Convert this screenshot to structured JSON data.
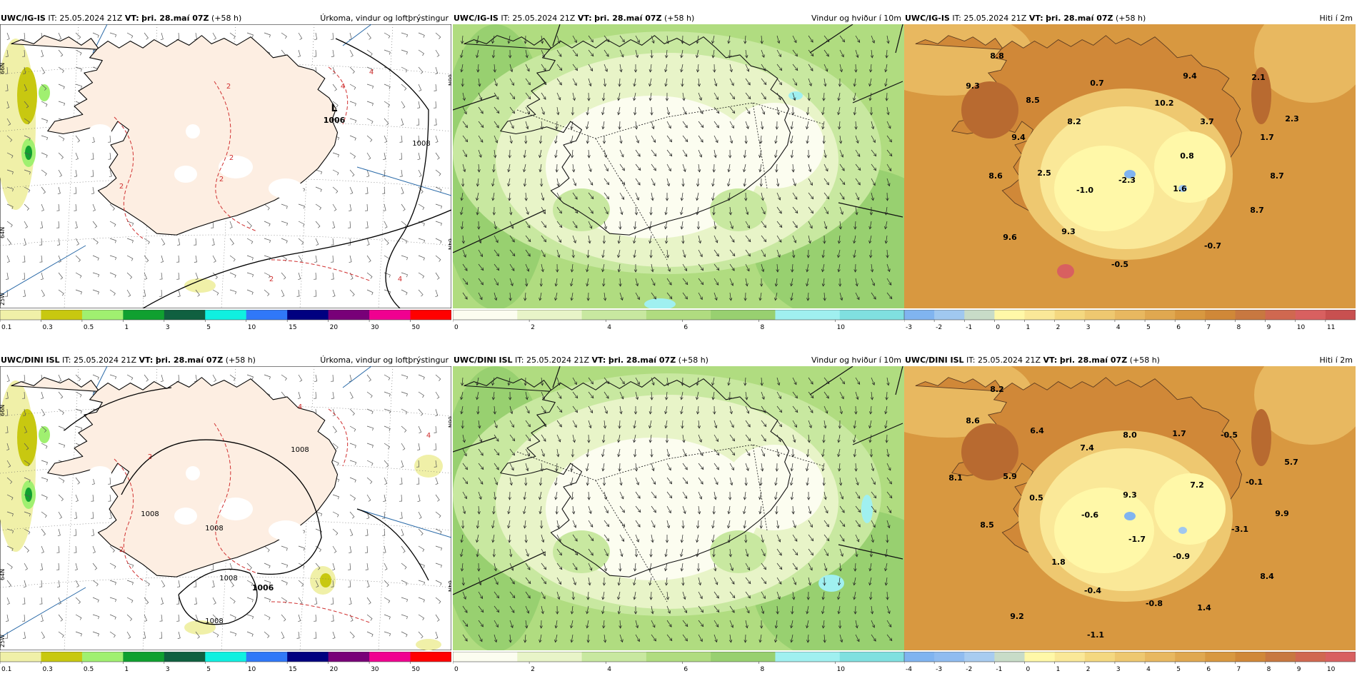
{
  "panels": [
    {
      "model": "UWC/IG-IS",
      "it": "IT: 25.05.2024 21Z",
      "vt_label": "VT:",
      "vt": "þri. 28.maí 07Z",
      "lead": "(+58 h)",
      "title": "Úrkoma, vindur og loftþrýstingur",
      "type": "precip",
      "lat_labels": [
        "66N",
        "64N"
      ],
      "lon_label": "25W",
      "lat_labels_right": [
        "66N",
        "64N"
      ],
      "pressure_labels": [
        {
          "text": "L"
        },
        {
          "text": "1006"
        }
      ],
      "contour_labels": [
        "1008",
        "4",
        "2",
        "2",
        "2",
        "2",
        "4",
        "2",
        "4"
      ]
    },
    {
      "model": "UWC/IG-IS",
      "it": "IT: 25.05.2024 21Z",
      "vt_label": "VT:",
      "vt": "þri. 28.maí 07Z",
      "lead": "(+58 h)",
      "title": "Vindur og hviður í 10m",
      "type": "wind"
    },
    {
      "model": "UWC/IG-IS",
      "it": "IT: 25.05.2024 21Z",
      "vt_label": "VT:",
      "vt": "þri. 28.maí 07Z",
      "lead": "(+58 h)",
      "title": "Hiti í 2m",
      "type": "temp",
      "temps": [
        "8.8",
        "9.3",
        "8.5",
        "0.7",
        "9.4",
        "2.1",
        "10.2",
        "8.2",
        "3.7",
        "2.3",
        "9.4",
        "1.7",
        "0.8",
        "8.6",
        "2.5",
        "-1.0",
        "-2.3",
        "1.6",
        "8.7",
        "8.7",
        "9.6",
        "9.3",
        "-0.7",
        "-0.5"
      ]
    },
    {
      "model": "UWC/DINI ISL",
      "it": "IT: 25.05.2024 21Z",
      "vt_label": "VT:",
      "vt": "þri. 28.maí 07Z",
      "lead": "(+58 h)",
      "title": "Úrkoma, vindur og loftþrýstingur",
      "type": "precip",
      "lat_labels": [
        "66N",
        "64N"
      ],
      "lon_label": "25W",
      "lat_labels_right": [
        "66N",
        "64N"
      ],
      "pressure_labels": [
        {
          "text": "1006"
        }
      ],
      "contour_labels": [
        "1008",
        "1008",
        "1008",
        "1008",
        "1008",
        "4",
        "4",
        "2",
        "2"
      ]
    },
    {
      "model": "UWC/DINI ISL",
      "it": "IT: 25.05.2024 21Z",
      "vt_label": "VT:",
      "vt": "þri. 28.maí 07Z",
      "lead": "(+58 h)",
      "title": "Vindur og hviður í 10m",
      "type": "wind"
    },
    {
      "model": "UWC/DINI ISL",
      "it": "IT: 25.05.2024 21Z",
      "vt_label": "VT:",
      "vt": "þri. 28.maí 07Z",
      "lead": "(+58 h)",
      "title": "Hiti í 2m",
      "type": "temp",
      "temps": [
        "8.2",
        "8.6",
        "6.4",
        "7.4",
        "8.0",
        "1.7",
        "-0.5",
        "8.1",
        "5.9",
        "0.5",
        "9.3",
        "7.2",
        "-0.1",
        "5.7",
        "-0.6",
        "-3.1",
        "9.9",
        "8.5",
        "-1.7",
        "-0.9",
        "1.8",
        "-0.4",
        "8.4",
        "-0.8",
        "1.4",
        "9.2",
        "-1.1"
      ]
    }
  ],
  "colorbars": {
    "precip": {
      "colors": [
        "#f0f0a8",
        "#c8c810",
        "#a0f070",
        "#10a030",
        "#106040",
        "#10f0e0",
        "#3078f8",
        "#000080",
        "#780078",
        "#f00090",
        "#ff0000"
      ],
      "labels": [
        "0.1",
        "0.3",
        "0.5",
        "1",
        "3",
        "5",
        "10",
        "15",
        "20",
        "30",
        "50"
      ]
    },
    "wind": {
      "colors": [
        "#fcfdf0",
        "#e8f4c8",
        "#c8e8a0",
        "#b0dc80",
        "#98d070",
        "#a0f0f0",
        "#80e0e0"
      ],
      "labels": [
        "0",
        "2",
        "4",
        "6",
        "8",
        "10"
      ]
    },
    "temp_top": {
      "colors": [
        "#80b4f0",
        "#a0c8f0",
        "#c8dcc8",
        "#fff8a8",
        "#fae898",
        "#f4d880",
        "#eec870",
        "#e8b860",
        "#e0a850",
        "#d89840",
        "#d08838",
        "#c87840",
        "#d06850",
        "#d86060",
        "#c85050"
      ],
      "labels": [
        "-3",
        "-2",
        "-1",
        "0",
        "1",
        "2",
        "3",
        "4",
        "5",
        "6",
        "7",
        "8",
        "9",
        "10",
        "11"
      ]
    },
    "temp_bottom": {
      "colors": [
        "#80b4f0",
        "#90bcf0",
        "#a8ccf0",
        "#c8dcc8",
        "#fff8a8",
        "#fae898",
        "#f4d880",
        "#eec870",
        "#e8b860",
        "#e0a850",
        "#d89840",
        "#d08838",
        "#c87840",
        "#d06850",
        "#d86060"
      ],
      "labels": [
        "-4",
        "-3",
        "-2",
        "-1",
        "0",
        "1",
        "2",
        "3",
        "4",
        "5",
        "6",
        "7",
        "8",
        "9",
        "10"
      ]
    }
  }
}
